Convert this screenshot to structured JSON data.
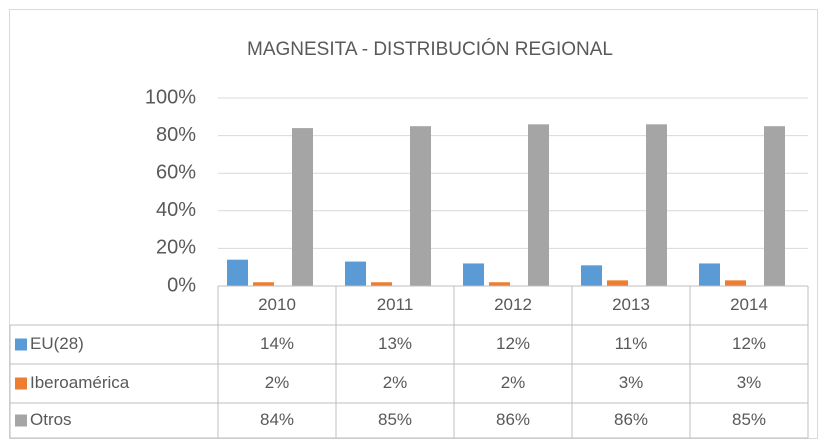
{
  "chart_data": {
    "type": "bar",
    "title": "MAGNESITA - DISTRIBUCIÓN REGIONAL",
    "categories": [
      "2010",
      "2011",
      "2012",
      "2013",
      "2014"
    ],
    "series": [
      {
        "name": "EU(28)",
        "color": "#5b9bd5",
        "values": [
          14,
          13,
          12,
          11,
          12
        ],
        "value_labels": [
          "14%",
          "13%",
          "12%",
          "11%",
          "12%"
        ]
      },
      {
        "name": "Iberoamérica",
        "color": "#ed7d31",
        "values": [
          2,
          2,
          2,
          3,
          3
        ],
        "value_labels": [
          "2%",
          "2%",
          "2%",
          "3%",
          "3%"
        ]
      },
      {
        "name": "Otros",
        "color": "#a5a5a5",
        "values": [
          84,
          85,
          86,
          86,
          85
        ],
        "value_labels": [
          "84%",
          "85%",
          "86%",
          "86%",
          "85%"
        ]
      }
    ],
    "ylim": [
      0,
      100
    ],
    "yticks": [
      {
        "value": 0,
        "label": "0%"
      },
      {
        "value": 20,
        "label": "20%"
      },
      {
        "value": 40,
        "label": "40%"
      },
      {
        "value": 60,
        "label": "60%"
      },
      {
        "value": 80,
        "label": "80%"
      },
      {
        "value": 100,
        "label": "100%"
      }
    ],
    "grid": true
  }
}
